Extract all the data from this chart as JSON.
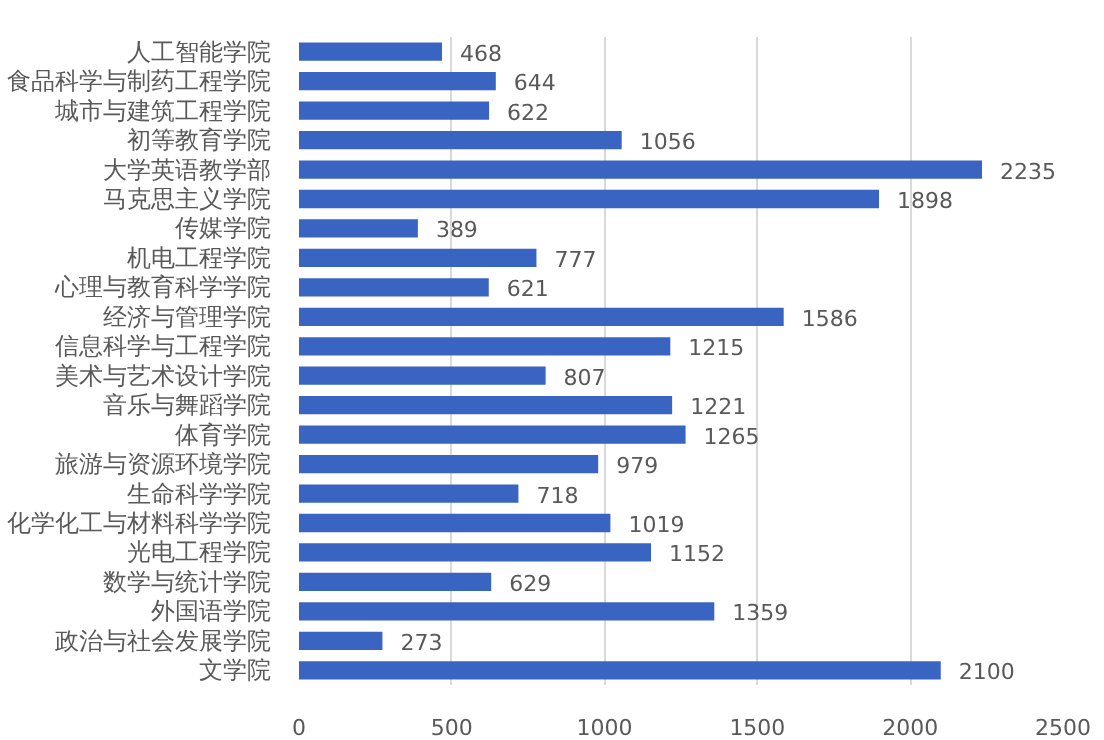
{
  "chart_data": {
    "type": "bar",
    "orientation": "horizontal",
    "categories": [
      "人工智能学院",
      "食品科学与制药工程学院",
      "城市与建筑工程学院",
      "初等教育学院",
      "大学英语教学部",
      "马克思主义学院",
      "传媒学院",
      "机电工程学院",
      "心理与教育科学学院",
      "经济与管理学院",
      "信息科学与工程学院",
      "美术与艺术设计学院",
      "音乐与舞蹈学院",
      "体育学院",
      "旅游与资源环境学院",
      "生命科学学院",
      "化学化工与材料科学学院",
      "光电工程学院",
      "数学与统计学院",
      "外国语学院",
      "政治与社会发展学院",
      "文学院"
    ],
    "values": [
      468,
      644,
      622,
      1056,
      2235,
      1898,
      389,
      777,
      621,
      1586,
      1215,
      807,
      1221,
      1265,
      979,
      718,
      1019,
      1152,
      629,
      1359,
      273,
      2100
    ],
    "color": "#3a64c2",
    "xlim": [
      0,
      2500
    ],
    "xticks": [
      0,
      500,
      1000,
      1500,
      2000,
      2500
    ],
    "grid": "x",
    "data_labels": true
  }
}
